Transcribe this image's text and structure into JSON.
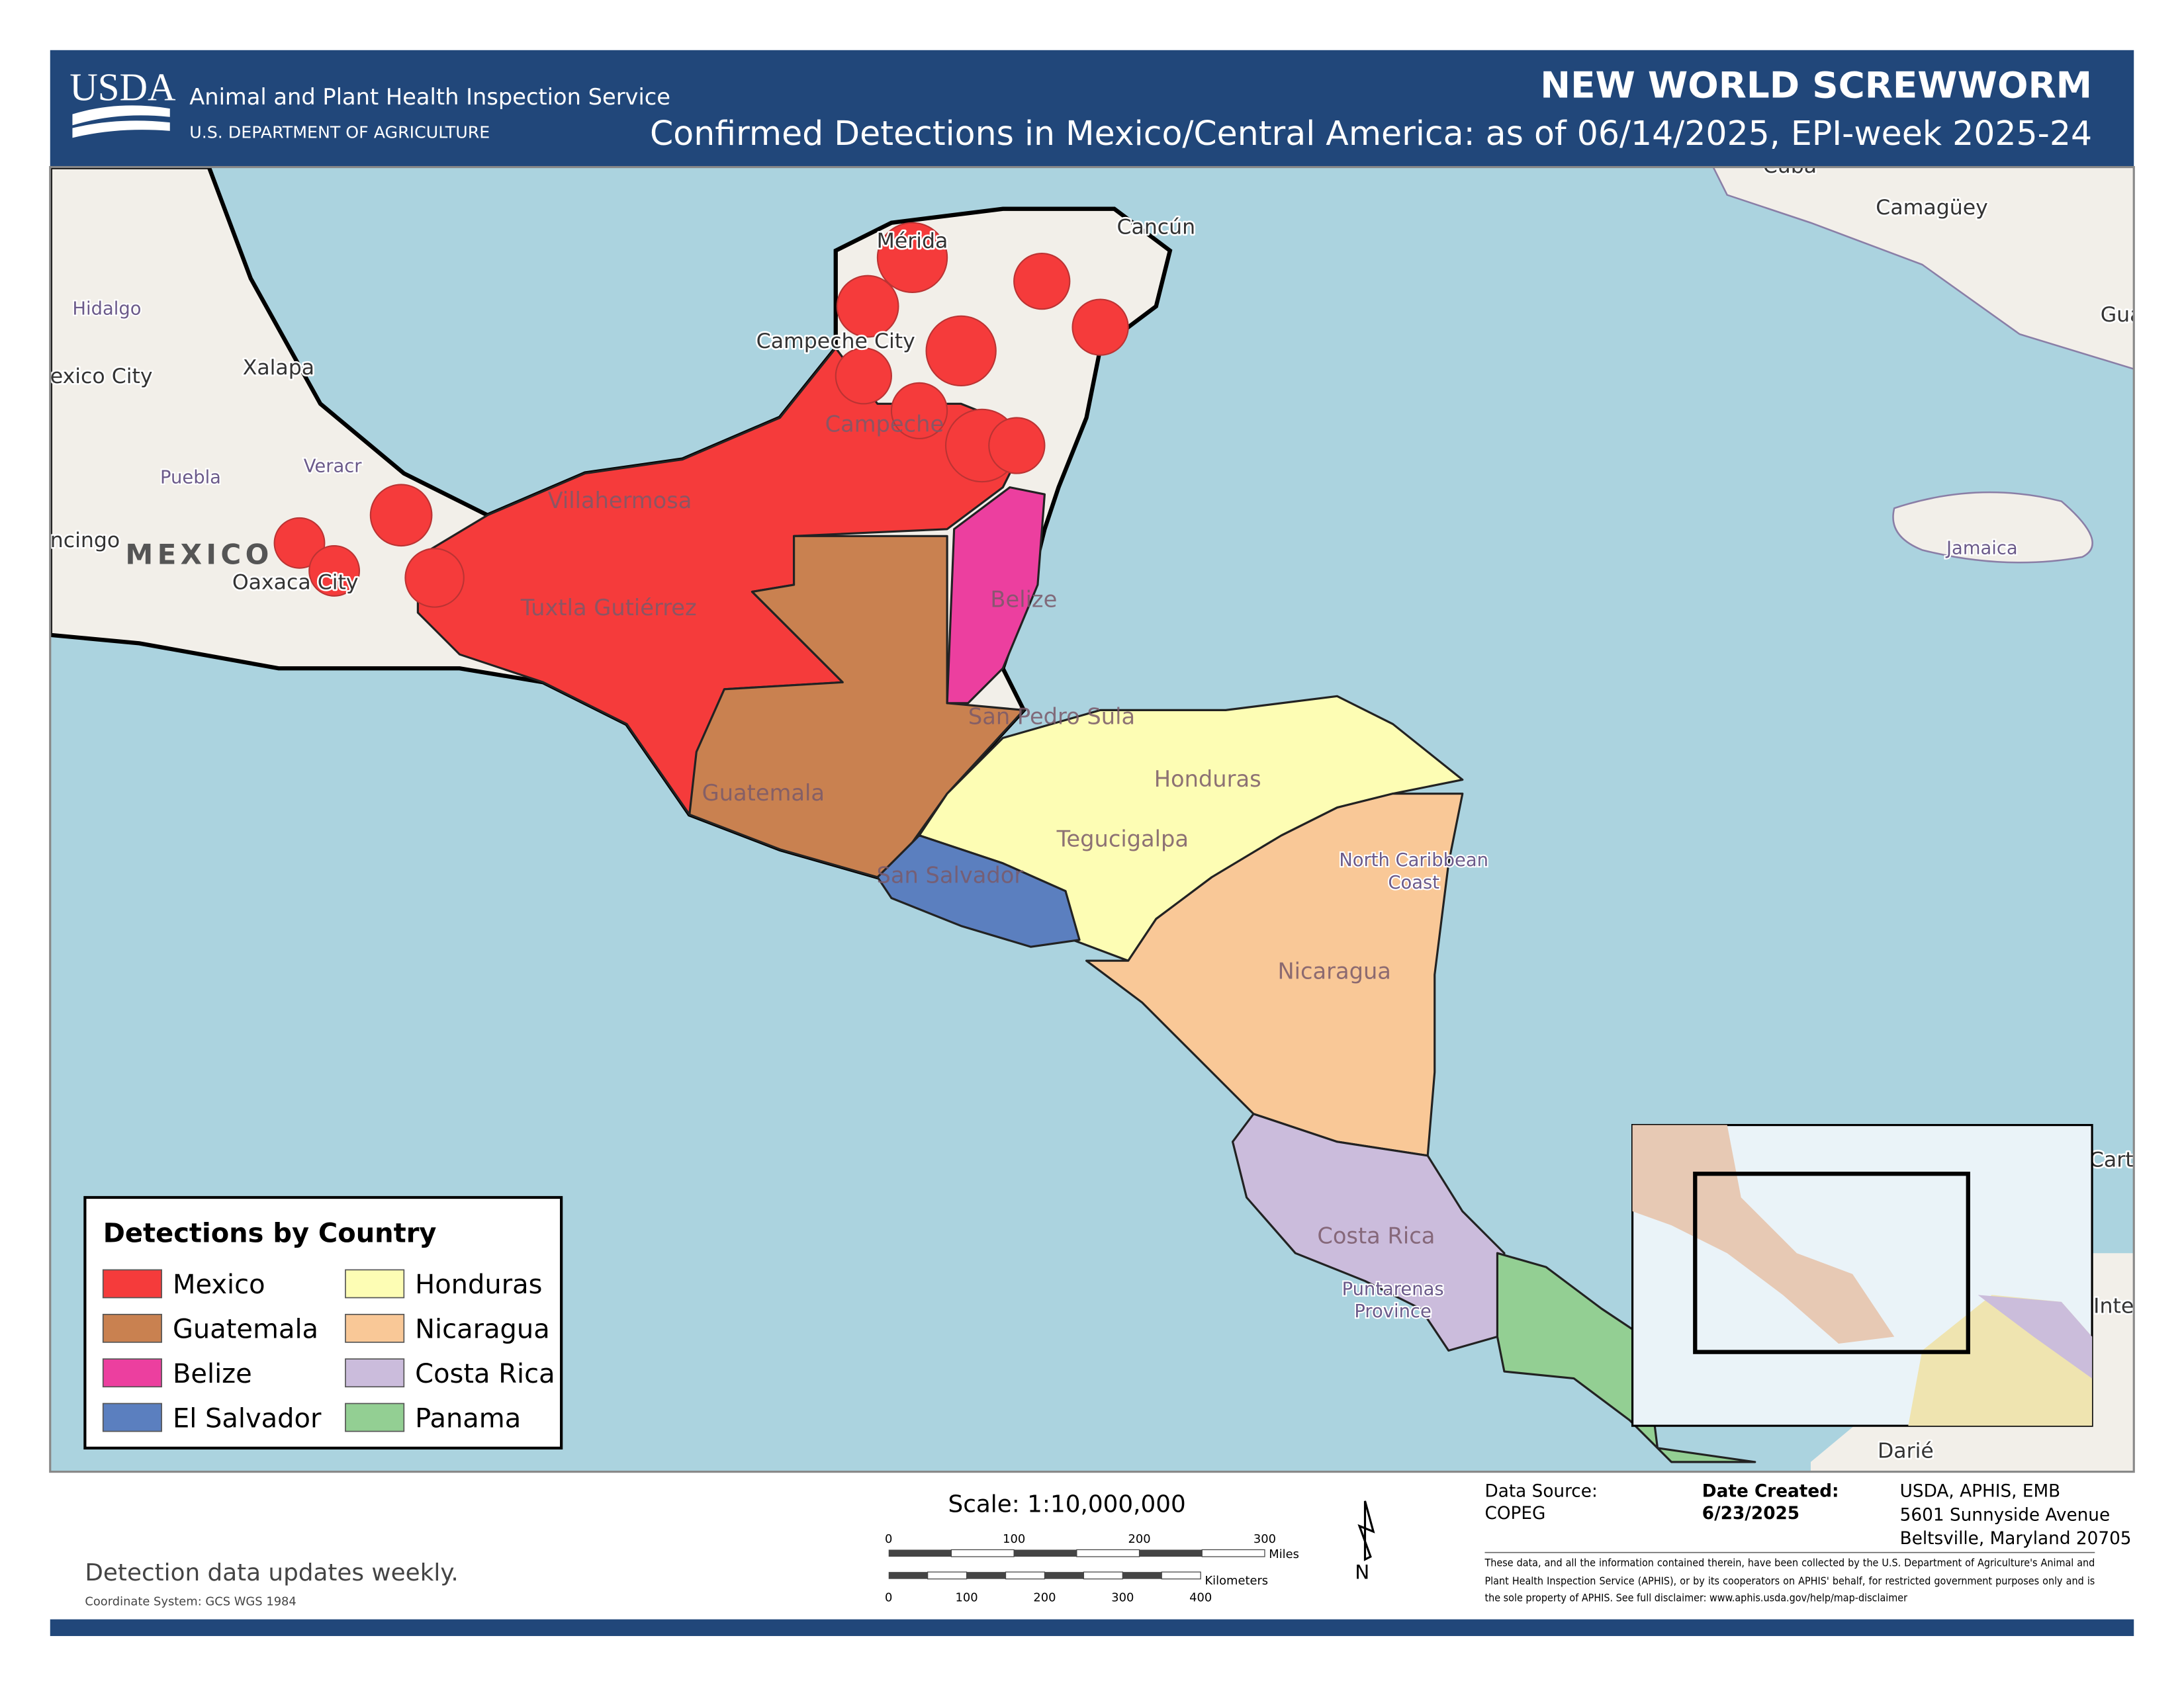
{
  "header": {
    "logo": "USDA",
    "agency": "Animal and Plant Health Inspection Service",
    "department": "U.S. DEPARTMENT OF AGRICULTURE",
    "title": "NEW WORLD SCREWWORM",
    "subtitle": "Confirmed Detections in Mexico/Central America: as of 06/14/2025, EPI-week 2025-24"
  },
  "map": {
    "places": [
      "Mérida",
      "Cancún",
      "Campeche City",
      "Campeche",
      "Xalapa",
      "exico City",
      "Hidalgo",
      "Puebla",
      "Veracr",
      "ncingo",
      "MEXICO",
      "Oaxaca City",
      "Villahermosa",
      "Tuxtla Gutiérrez",
      "Belize",
      "San Pedro Sula",
      "Guatemala",
      "Honduras",
      "Tegucigalpa",
      "San Salvador",
      "North Caribbean",
      "Coast",
      "Nicaragua",
      "Costa Rica",
      "Puntarenas",
      "Province",
      "Jamaica",
      "Camagüey",
      "Cuba",
      "Gua",
      "Carta",
      "Inter",
      "Darié"
    ]
  },
  "legend": {
    "title": "Detections by Country",
    "items": [
      {
        "name": "Mexico",
        "color": "#f53b3b"
      },
      {
        "name": "Guatemala",
        "color": "#c98150"
      },
      {
        "name": "Belize",
        "color": "#ec3f9f"
      },
      {
        "name": "El Salvador",
        "color": "#5b7fbf"
      },
      {
        "name": "Honduras",
        "color": "#fdfdb4"
      },
      {
        "name": "Nicaragua",
        "color": "#f9c897"
      },
      {
        "name": "Costa Rica",
        "color": "#cbbcdc"
      },
      {
        "name": "Panama",
        "color": "#93cf93"
      }
    ]
  },
  "scale": {
    "text": "Scale: 1:10,000,000",
    "miles": [
      0,
      100,
      200,
      300
    ],
    "miles_unit": "Miles",
    "km": [
      0,
      100,
      200,
      300,
      400
    ],
    "km_unit": "Kilometers"
  },
  "footer": {
    "note": "Detection data updates weekly.",
    "coordinate_system": "Coordinate System: GCS WGS 1984",
    "north": "N",
    "data_source_label": "Data Source:",
    "data_source": "COPEG",
    "date_created_label": "Date Created:",
    "date_created": "6/23/2025",
    "address": [
      "USDA, APHIS, EMB",
      "5601 Sunnyside Avenue",
      "Beltsville, Maryland 20705"
    ],
    "disclaimer": "These data, and all the information contained therein, have been collected by the U.S. Department of Agriculture's Animal and Plant Health Inspection Service (APHIS), or by its cooperators on APHIS' behalf, for restricted government purposes only and is the sole property of APHIS. See full disclaimer: www.aphis.usda.gov/help/map-disclaimer"
  }
}
